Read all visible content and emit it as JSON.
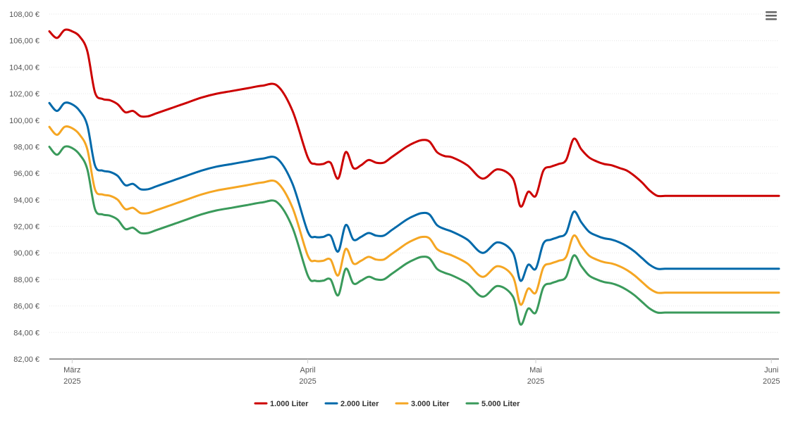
{
  "chart_data": {
    "type": "line",
    "y_unit_suffix": " €",
    "ylim": [
      82,
      108
    ],
    "yticks": [
      "82,00 €",
      "84,00 €",
      "86,00 €",
      "88,00 €",
      "90,00 €",
      "92,00 €",
      "94,00 €",
      "96,00 €",
      "98,00 €",
      "100,00 €",
      "102,00 €",
      "104,00 €",
      "106,00 €",
      "108,00 €"
    ],
    "xlim": [
      "2025-02-26",
      "2025-06-02"
    ],
    "xticks": [
      {
        "date": "2025-03-01",
        "line1": "März",
        "line2": "2025"
      },
      {
        "date": "2025-04-01",
        "line1": "April",
        "line2": "2025"
      },
      {
        "date": "2025-05-01",
        "line1": "Mai",
        "line2": "2025"
      },
      {
        "date": "2025-06-01",
        "line1": "Juni",
        "line2": "2025"
      }
    ],
    "grid": true,
    "legend_position": "bottom-center",
    "x": [
      "2025-02-26",
      "2025-02-27",
      "2025-02-28",
      "2025-03-01",
      "2025-03-02",
      "2025-03-03",
      "2025-03-04",
      "2025-03-05",
      "2025-03-06",
      "2025-03-07",
      "2025-03-08",
      "2025-03-09",
      "2025-03-10",
      "2025-03-11",
      "2025-03-12",
      "2025-03-13",
      "2025-03-14",
      "2025-03-15",
      "2025-03-16",
      "2025-03-18",
      "2025-03-20",
      "2025-03-22",
      "2025-03-24",
      "2025-03-26",
      "2025-03-28",
      "2025-03-30",
      "2025-04-01",
      "2025-04-02",
      "2025-04-03",
      "2025-04-04",
      "2025-04-05",
      "2025-04-06",
      "2025-04-07",
      "2025-04-08",
      "2025-04-09",
      "2025-04-10",
      "2025-04-11",
      "2025-04-12",
      "2025-04-13",
      "2025-04-14",
      "2025-04-15",
      "2025-04-16",
      "2025-04-17",
      "2025-04-18",
      "2025-04-19",
      "2025-04-20",
      "2025-04-22",
      "2025-04-24",
      "2025-04-26",
      "2025-04-28",
      "2025-04-29",
      "2025-04-30",
      "2025-05-01",
      "2025-05-02",
      "2025-05-03",
      "2025-05-04",
      "2025-05-05",
      "2025-05-06",
      "2025-05-07",
      "2025-05-08",
      "2025-05-09",
      "2025-05-10",
      "2025-05-11",
      "2025-05-12",
      "2025-05-13",
      "2025-05-14",
      "2025-05-15",
      "2025-05-16",
      "2025-05-17",
      "2025-05-18",
      "2025-05-19",
      "2025-05-20",
      "2025-05-22",
      "2025-05-24",
      "2025-05-26",
      "2025-05-28",
      "2025-05-30",
      "2025-06-01",
      "2025-06-02"
    ],
    "series": [
      {
        "name": "1.000 Liter",
        "color": "#cc0000",
        "values": [
          106.7,
          106.2,
          106.8,
          106.7,
          106.3,
          105.2,
          102.1,
          101.6,
          101.5,
          101.2,
          100.6,
          100.7,
          100.3,
          100.3,
          100.5,
          100.7,
          100.9,
          101.1,
          101.3,
          101.7,
          102.0,
          102.2,
          102.4,
          102.6,
          102.6,
          100.7,
          97.2,
          96.7,
          96.7,
          96.8,
          95.6,
          97.6,
          96.4,
          96.6,
          97.0,
          96.8,
          96.8,
          97.2,
          97.6,
          98.0,
          98.3,
          98.5,
          98.4,
          97.6,
          97.3,
          97.2,
          96.6,
          95.6,
          96.3,
          95.6,
          93.5,
          94.6,
          94.3,
          96.2,
          96.5,
          96.7,
          97.0,
          98.6,
          97.8,
          97.2,
          96.9,
          96.7,
          96.6,
          96.4,
          96.2,
          95.8,
          95.3,
          94.7,
          94.3,
          94.3,
          94.3,
          94.3,
          94.3,
          94.3,
          94.3,
          94.3,
          94.3,
          94.3,
          94.3
        ]
      },
      {
        "name": "2.000 Liter",
        "color": "#0069aa",
        "values": [
          101.3,
          100.7,
          101.3,
          101.2,
          100.7,
          99.6,
          96.6,
          96.2,
          96.1,
          95.8,
          95.1,
          95.2,
          94.8,
          94.8,
          95.0,
          95.2,
          95.4,
          95.6,
          95.8,
          96.2,
          96.5,
          96.7,
          96.9,
          97.1,
          97.1,
          95.2,
          91.6,
          91.2,
          91.2,
          91.3,
          90.1,
          92.1,
          91.0,
          91.2,
          91.5,
          91.3,
          91.3,
          91.7,
          92.1,
          92.5,
          92.8,
          93.0,
          92.9,
          92.1,
          91.8,
          91.6,
          91.0,
          90.0,
          90.8,
          90.0,
          87.9,
          89.1,
          88.8,
          90.7,
          91.0,
          91.2,
          91.5,
          93.1,
          92.3,
          91.6,
          91.3,
          91.1,
          91.0,
          90.8,
          90.5,
          90.1,
          89.6,
          89.1,
          88.8,
          88.8,
          88.8,
          88.8,
          88.8,
          88.8,
          88.8,
          88.8,
          88.8,
          88.8,
          88.8
        ]
      },
      {
        "name": "3.000 Liter",
        "color": "#f5a623",
        "values": [
          99.5,
          98.9,
          99.5,
          99.4,
          98.9,
          97.8,
          94.8,
          94.4,
          94.3,
          94.0,
          93.3,
          93.4,
          93.0,
          93.0,
          93.2,
          93.4,
          93.6,
          93.8,
          94.0,
          94.4,
          94.7,
          94.9,
          95.1,
          95.3,
          95.3,
          93.4,
          89.8,
          89.4,
          89.4,
          89.5,
          88.3,
          90.3,
          89.2,
          89.4,
          89.7,
          89.5,
          89.5,
          89.9,
          90.3,
          90.7,
          91.0,
          91.2,
          91.1,
          90.3,
          90.0,
          89.8,
          89.2,
          88.2,
          89.0,
          88.2,
          86.1,
          87.3,
          87.0,
          88.9,
          89.2,
          89.4,
          89.7,
          91.3,
          90.5,
          89.8,
          89.5,
          89.3,
          89.2,
          89.0,
          88.7,
          88.3,
          87.8,
          87.3,
          87.0,
          87.0,
          87.0,
          87.0,
          87.0,
          87.0,
          87.0,
          87.0,
          87.0,
          87.0,
          87.0
        ]
      },
      {
        "name": "5.000 Liter",
        "color": "#3a9a5b",
        "values": [
          98.0,
          97.4,
          98.0,
          97.9,
          97.4,
          96.3,
          93.3,
          92.9,
          92.8,
          92.5,
          91.8,
          91.9,
          91.5,
          91.5,
          91.7,
          91.9,
          92.1,
          92.3,
          92.5,
          92.9,
          93.2,
          93.4,
          93.6,
          93.8,
          93.8,
          91.9,
          88.3,
          87.9,
          87.9,
          88.0,
          86.8,
          88.8,
          87.7,
          87.9,
          88.2,
          88.0,
          88.0,
          88.4,
          88.8,
          89.2,
          89.5,
          89.7,
          89.6,
          88.8,
          88.5,
          88.3,
          87.7,
          86.7,
          87.5,
          86.7,
          84.6,
          85.8,
          85.5,
          87.4,
          87.7,
          87.9,
          88.2,
          89.8,
          89.0,
          88.3,
          88.0,
          87.8,
          87.7,
          87.5,
          87.2,
          86.8,
          86.3,
          85.8,
          85.5,
          85.5,
          85.5,
          85.5,
          85.5,
          85.5,
          85.5,
          85.5,
          85.5,
          85.5,
          85.5
        ]
      }
    ]
  },
  "menu": {
    "icon": "hamburger-icon"
  }
}
